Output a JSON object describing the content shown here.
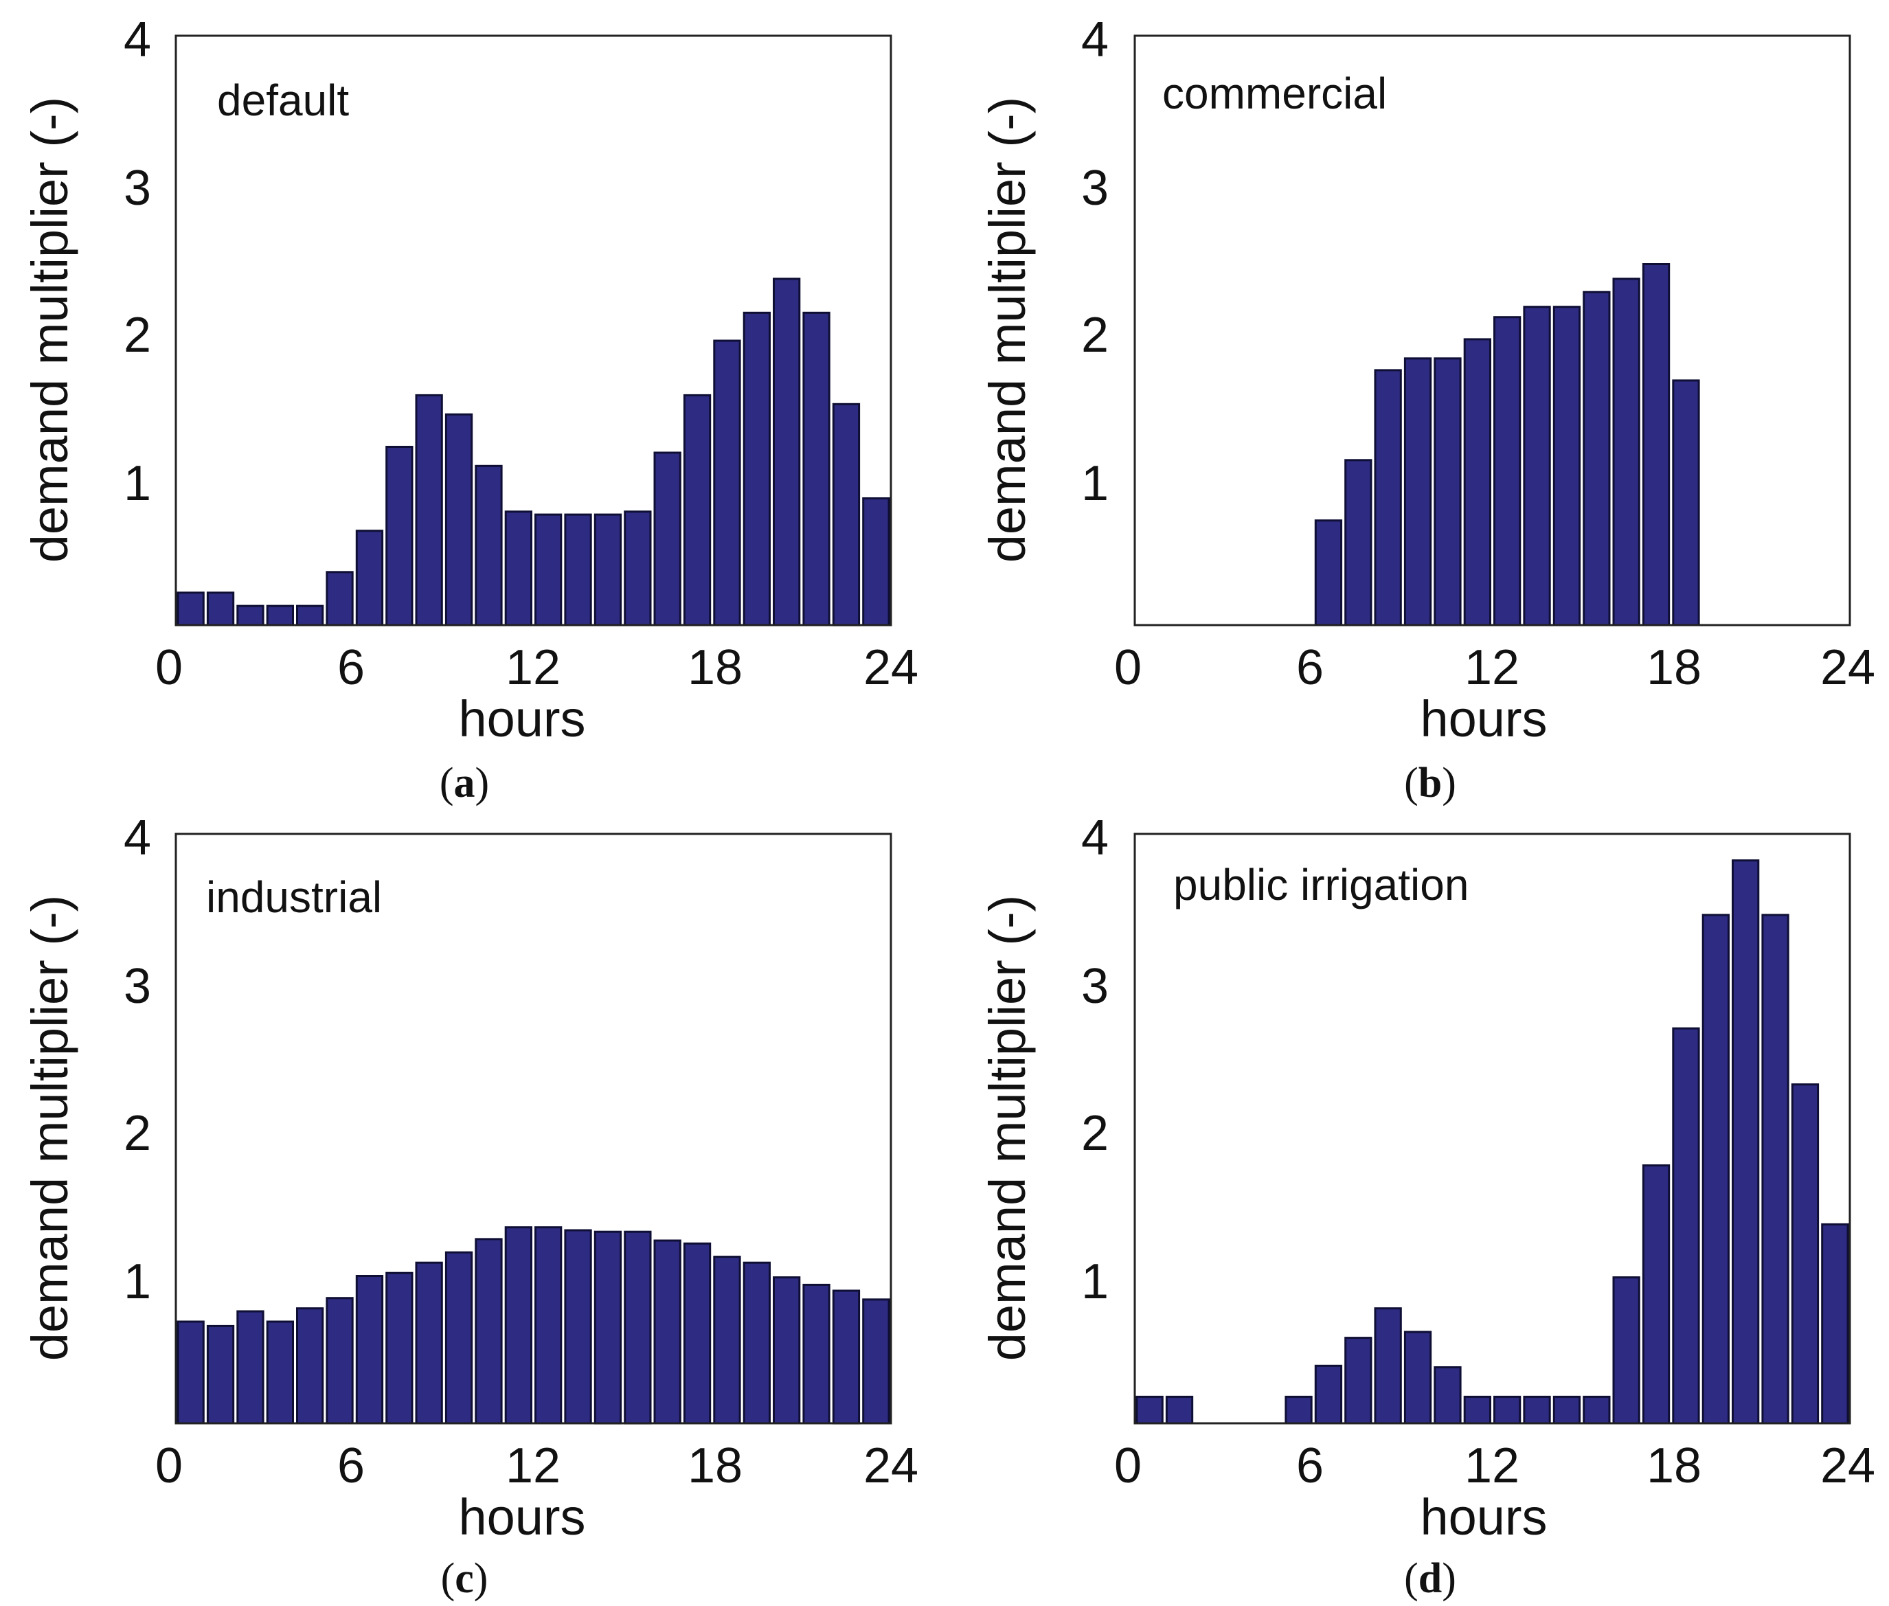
{
  "colors": {
    "bar_fill": "#2e2b82",
    "bar_edge": "#0f0f35",
    "axis": "#222222"
  },
  "chart_data": [
    {
      "type": "bar",
      "title": "default",
      "caption_letter": "a",
      "xlabel": "hours",
      "ylabel": "demand multiplier (-)",
      "xlim": [
        0,
        24
      ],
      "ylim": [
        0,
        4
      ],
      "xticks": [
        "0",
        "6",
        "12",
        "18",
        "24"
      ],
      "yticks": [
        "1",
        "2",
        "3",
        "4"
      ],
      "categories": [
        1,
        2,
        3,
        4,
        5,
        6,
        7,
        8,
        9,
        10,
        11,
        12,
        13,
        14,
        15,
        16,
        17,
        18,
        19,
        20,
        21,
        22,
        23,
        24
      ],
      "values": [
        0.22,
        0.22,
        0.13,
        0.13,
        0.13,
        0.36,
        0.64,
        1.21,
        1.56,
        1.43,
        1.08,
        0.77,
        0.75,
        0.75,
        0.75,
        0.77,
        1.17,
        1.56,
        1.93,
        2.12,
        2.35,
        2.12,
        1.5,
        0.86
      ]
    },
    {
      "type": "bar",
      "title": "commercial",
      "caption_letter": "b",
      "xlabel": "hours",
      "ylabel": "demand multiplier (-)",
      "xlim": [
        0,
        24
      ],
      "ylim": [
        0,
        4
      ],
      "xticks": [
        "0",
        "6",
        "12",
        "18",
        "24"
      ],
      "yticks": [
        "1",
        "2",
        "3",
        "4"
      ],
      "categories": [
        1,
        2,
        3,
        4,
        5,
        6,
        7,
        8,
        9,
        10,
        11,
        12,
        13,
        14,
        15,
        16,
        17,
        18,
        19,
        20,
        21,
        22,
        23,
        24
      ],
      "values": [
        0,
        0,
        0,
        0,
        0,
        0,
        0.71,
        1.12,
        1.73,
        1.81,
        1.81,
        1.94,
        2.09,
        2.16,
        2.16,
        2.26,
        2.35,
        2.45,
        1.66,
        0,
        0,
        0,
        0,
        0
      ]
    },
    {
      "type": "bar",
      "title": "industrial",
      "caption_letter": "c",
      "xlabel": "hours",
      "ylabel": "demand multiplier (-)",
      "xlim": [
        0,
        24
      ],
      "ylim": [
        0,
        4
      ],
      "xticks": [
        "0",
        "6",
        "12",
        "18",
        "24"
      ],
      "yticks": [
        "1",
        "2",
        "3",
        "4"
      ],
      "categories": [
        1,
        2,
        3,
        4,
        5,
        6,
        7,
        8,
        9,
        10,
        11,
        12,
        13,
        14,
        15,
        16,
        17,
        18,
        19,
        20,
        21,
        22,
        23,
        24
      ],
      "values": [
        0.69,
        0.66,
        0.76,
        0.69,
        0.78,
        0.85,
        1.0,
        1.02,
        1.09,
        1.16,
        1.25,
        1.33,
        1.33,
        1.31,
        1.3,
        1.3,
        1.24,
        1.22,
        1.13,
        1.09,
        0.99,
        0.94,
        0.9,
        0.84
      ]
    },
    {
      "type": "bar",
      "title": "public irrigation",
      "caption_letter": "d",
      "xlabel": "hours",
      "ylabel": "demand multiplier (-)",
      "xlim": [
        0,
        24
      ],
      "ylim": [
        0,
        4
      ],
      "xticks": [
        "0",
        "6",
        "12",
        "18",
        "24"
      ],
      "yticks": [
        "1",
        "2",
        "3",
        "4"
      ],
      "categories": [
        1,
        2,
        3,
        4,
        5,
        6,
        7,
        8,
        9,
        10,
        11,
        12,
        13,
        14,
        15,
        16,
        17,
        18,
        19,
        20,
        21,
        22,
        23,
        24
      ],
      "values": [
        0.18,
        0.18,
        0,
        0,
        0,
        0.18,
        0.39,
        0.58,
        0.78,
        0.62,
        0.38,
        0.18,
        0.18,
        0.18,
        0.18,
        0.18,
        0.99,
        1.75,
        2.68,
        3.45,
        3.82,
        3.45,
        2.3,
        1.35
      ]
    }
  ]
}
